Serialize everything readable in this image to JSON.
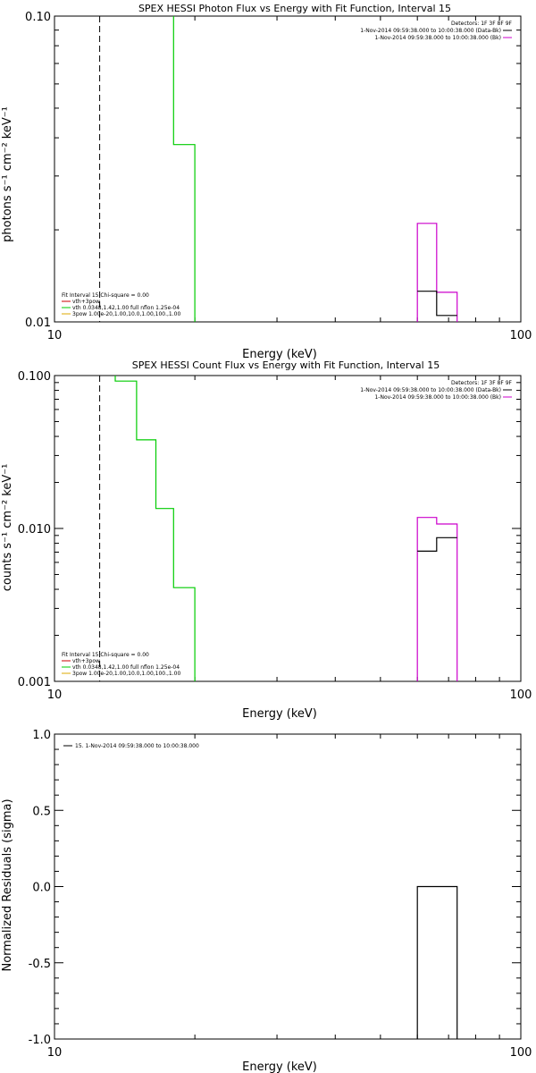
{
  "chart_data": [
    {
      "type": "line",
      "title": "SPEX HESSI Photon Flux vs Energy with Fit Function, Interval 15",
      "xlabel": "Energy (keV)",
      "ylabel": "photons s⁻¹ cm⁻² keV⁻¹",
      "xscale": "log",
      "yscale": "log",
      "xlim": [
        10,
        100
      ],
      "ylim": [
        0.01,
        0.1
      ],
      "x_ticks": [
        "10",
        "100"
      ],
      "y_ticks": [
        "0.01",
        "0.10"
      ],
      "vline": 12.5,
      "legend_tr": {
        "title": "Detectors: 1F 3F 8F 9F",
        "entries": [
          {
            "label": "1-Nov-2014 09:59:38.000 to 10:00:38.000 (Data-Bk)",
            "color": "#000000"
          },
          {
            "label": "1-Nov-2014 09:59:38.000 to 10:00:38.000 (Bk)",
            "color": "#cc00cc"
          }
        ]
      },
      "legend_bl": {
        "title": "Fit Interval 15   Chi-square = 0.00",
        "entries": [
          {
            "label": "vth+3pow",
            "color": "#cc0000"
          },
          {
            "label": "vth 0.0348,1.42,1.00  full nflon 1.25e-04",
            "color": "#00cc00"
          },
          {
            "label": "3pow 1.00e-20,1.00,10.0,1.00,100.,1.00",
            "color": "#ddaa00"
          }
        ]
      },
      "series": [
        {
          "color": "#00cc00",
          "steps": [
            [
              18,
              0.1
            ],
            [
              18,
              0.038
            ],
            [
              20,
              0.038
            ],
            [
              20,
              0.01
            ]
          ]
        },
        {
          "color": "#cc00cc",
          "steps": [
            [
              60,
              0.01
            ],
            [
              60,
              0.021
            ],
            [
              66,
              0.021
            ],
            [
              66,
              0.0125
            ],
            [
              73,
              0.0125
            ],
            [
              73,
              0.01
            ]
          ]
        },
        {
          "color": "#000000",
          "steps": [
            [
              60,
              0.0126
            ],
            [
              66,
              0.0126
            ],
            [
              66,
              0.0105
            ],
            [
              73,
              0.0105
            ]
          ]
        }
      ]
    },
    {
      "type": "line",
      "title": "SPEX HESSI Count Flux vs Energy with Fit Function, Interval 15",
      "xlabel": "Energy (keV)",
      "ylabel": "counts s⁻¹ cm⁻² keV⁻¹",
      "xscale": "log",
      "yscale": "log",
      "xlim": [
        10,
        100
      ],
      "ylim": [
        0.001,
        0.1
      ],
      "x_ticks": [
        "10",
        "100"
      ],
      "y_ticks": [
        "0.001",
        "0.010",
        "0.100"
      ],
      "vline": 12.5,
      "legend_tr": {
        "title": "Detectors: 1F 3F 8F 9F",
        "entries": [
          {
            "label": "1-Nov-2014 09:59:38.000 to 10:00:38.000 (Data-Bk)",
            "color": "#000000"
          },
          {
            "label": "1-Nov-2014 09:59:38.000 to 10:00:38.000 (Bk)",
            "color": "#cc00cc"
          }
        ]
      },
      "legend_bl": {
        "title": "Fit Interval 15   Chi-square = 0.00",
        "entries": [
          {
            "label": "vth+3pow",
            "color": "#cc0000"
          },
          {
            "label": "vth 0.0348,1.42,1.00  full nflon 1.25e-04",
            "color": "#00cc00"
          },
          {
            "label": "3pow 1.00e-20,1.00,10.0,1.00,100.,1.00",
            "color": "#ddaa00"
          }
        ]
      },
      "series": [
        {
          "color": "#00cc00",
          "steps": [
            [
              13.5,
              0.1
            ],
            [
              13.5,
              0.092
            ],
            [
              15,
              0.092
            ],
            [
              15,
              0.038
            ],
            [
              16.5,
              0.038
            ],
            [
              16.5,
              0.0135
            ],
            [
              18,
              0.0135
            ],
            [
              18,
              0.0041
            ],
            [
              20,
              0.0041
            ],
            [
              20,
              0.001
            ]
          ]
        },
        {
          "color": "#cc00cc",
          "steps": [
            [
              60,
              0.001
            ],
            [
              60,
              0.0118
            ],
            [
              66,
              0.0118
            ],
            [
              66,
              0.0107
            ],
            [
              73,
              0.0107
            ],
            [
              73,
              0.001
            ]
          ]
        },
        {
          "color": "#000000",
          "steps": [
            [
              60,
              0.0071
            ],
            [
              66,
              0.0071
            ],
            [
              66,
              0.0087
            ],
            [
              73,
              0.0087
            ]
          ]
        }
      ]
    },
    {
      "type": "line",
      "title": "",
      "xlabel": "Energy (keV)",
      "ylabel": "Normalized Residuals (sigma)",
      "xscale": "log",
      "yscale": "linear",
      "xlim": [
        10,
        100
      ],
      "ylim": [
        -1.0,
        1.0
      ],
      "x_ticks": [
        "10",
        "100"
      ],
      "y_ticks": [
        "-1.0",
        "-0.5",
        "0.0",
        "0.5",
        "1.0"
      ],
      "legend_tl": {
        "entries": [
          {
            "label": "15.  1-Nov-2014 09:59:38.000 to 10:00:38.000",
            "color": "#000000"
          }
        ]
      },
      "series": [
        {
          "color": "#000000",
          "steps": [
            [
              60,
              -1.0
            ],
            [
              60,
              0.0
            ],
            [
              73,
              0.0
            ],
            [
              73,
              -1.0
            ]
          ]
        }
      ]
    }
  ]
}
